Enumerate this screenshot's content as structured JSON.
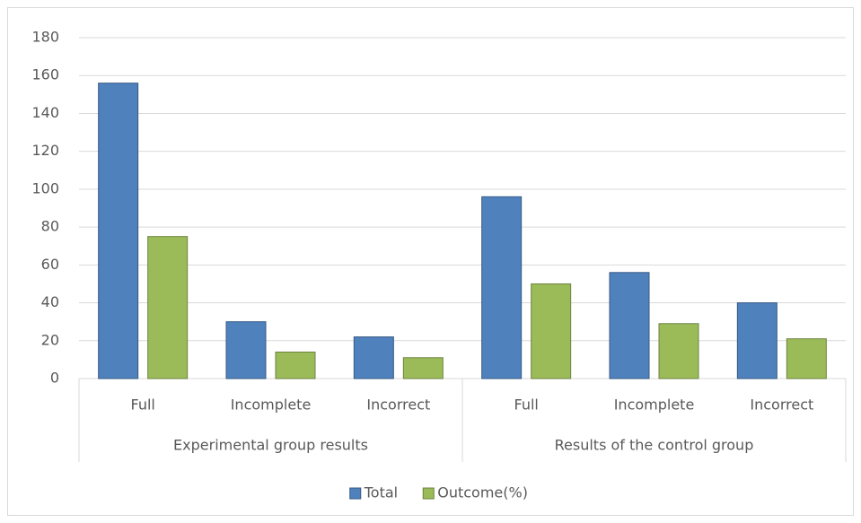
{
  "chart_data": {
    "type": "bar",
    "categories": [
      "Full",
      "Incomplete",
      "Incorrect",
      "Full",
      "Incomplete",
      "Incorrect"
    ],
    "groups": [
      "Experimental group results",
      "Results of the control group"
    ],
    "series": [
      {
        "name": "Total",
        "color": "#4f81bd",
        "values": [
          156,
          30,
          22,
          96,
          56,
          40
        ]
      },
      {
        "name": "Outcome(%)",
        "color": "#9bbb59",
        "values": [
          75,
          14,
          11,
          50,
          29,
          21
        ]
      }
    ],
    "ylim": [
      0,
      180
    ],
    "yticks": [
      0,
      20,
      40,
      60,
      80,
      100,
      120,
      140,
      160,
      180
    ],
    "grid": true,
    "legend": "bottom"
  }
}
